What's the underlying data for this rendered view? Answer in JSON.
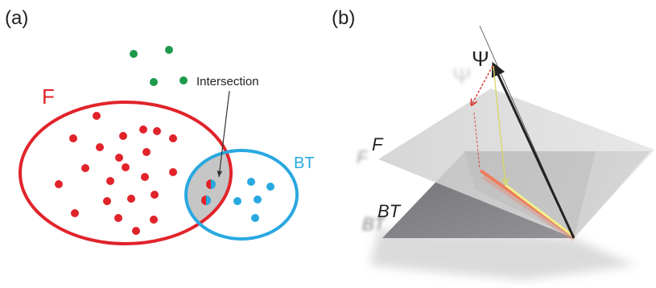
{
  "panel_a": {
    "label": "(a)",
    "set_f_label": "F",
    "set_bt_label": "BT",
    "intersection_label": "Intersection",
    "colors": {
      "f": "#e1232a",
      "bt": "#29a8e0",
      "outside": "#1d9a4c",
      "intersection_fill": "#c6c6c6"
    }
  },
  "panel_b": {
    "label": "(b)",
    "psi_label": "Ψ",
    "psi_shadow_label": "Ψ",
    "plane_f_label": "F",
    "plane_f_shadow_label": "F",
    "plane_bt_label": "BT",
    "plane_bt_shadow_label": "BT",
    "colors": {
      "plane_f": "#d6d6d6",
      "plane_bt": "#8e8e92",
      "vector": "#222222",
      "projection_f": "#f0f08a",
      "projection_bt": "#ef7b5a",
      "dashed": "#d9302a"
    }
  }
}
